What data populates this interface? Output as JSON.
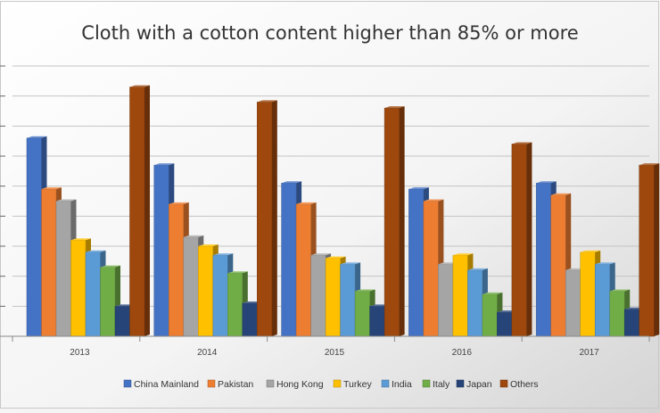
{
  "chart_data": {
    "type": "bar",
    "title": "Cloth with a cotton content higher than 85% or more",
    "categories": [
      "2013",
      "2014",
      "2015",
      "2016",
      "2017"
    ],
    "ylim": [
      0,
      9
    ],
    "grid": true,
    "legend_position": "bottom",
    "series": [
      {
        "name": "China Mainland",
        "color": "#4472C4",
        "values": [
          6.6,
          5.7,
          5.1,
          4.9,
          5.1
        ]
      },
      {
        "name": "Pakistan",
        "color": "#ED7D31",
        "values": [
          4.9,
          4.4,
          4.4,
          4.5,
          4.7
        ]
      },
      {
        "name": "Hong Kong",
        "color": "#A5A5A5",
        "values": [
          4.5,
          3.3,
          2.7,
          2.4,
          2.2
        ]
      },
      {
        "name": "Turkey",
        "color": "#FFC000",
        "values": [
          3.2,
          3.0,
          2.6,
          2.7,
          2.8
        ]
      },
      {
        "name": "India",
        "color": "#5B9BD5",
        "values": [
          2.8,
          2.7,
          2.4,
          2.2,
          2.4
        ]
      },
      {
        "name": "Italy",
        "color": "#70AD47",
        "values": [
          2.3,
          2.1,
          1.5,
          1.4,
          1.5
        ]
      },
      {
        "name": "Japan",
        "color": "#264478",
        "values": [
          1.0,
          1.1,
          1.0,
          0.8,
          0.9
        ]
      },
      {
        "name": "Others",
        "color": "#9E480E",
        "values": [
          8.3,
          7.8,
          7.6,
          6.4,
          5.7
        ]
      }
    ]
  }
}
